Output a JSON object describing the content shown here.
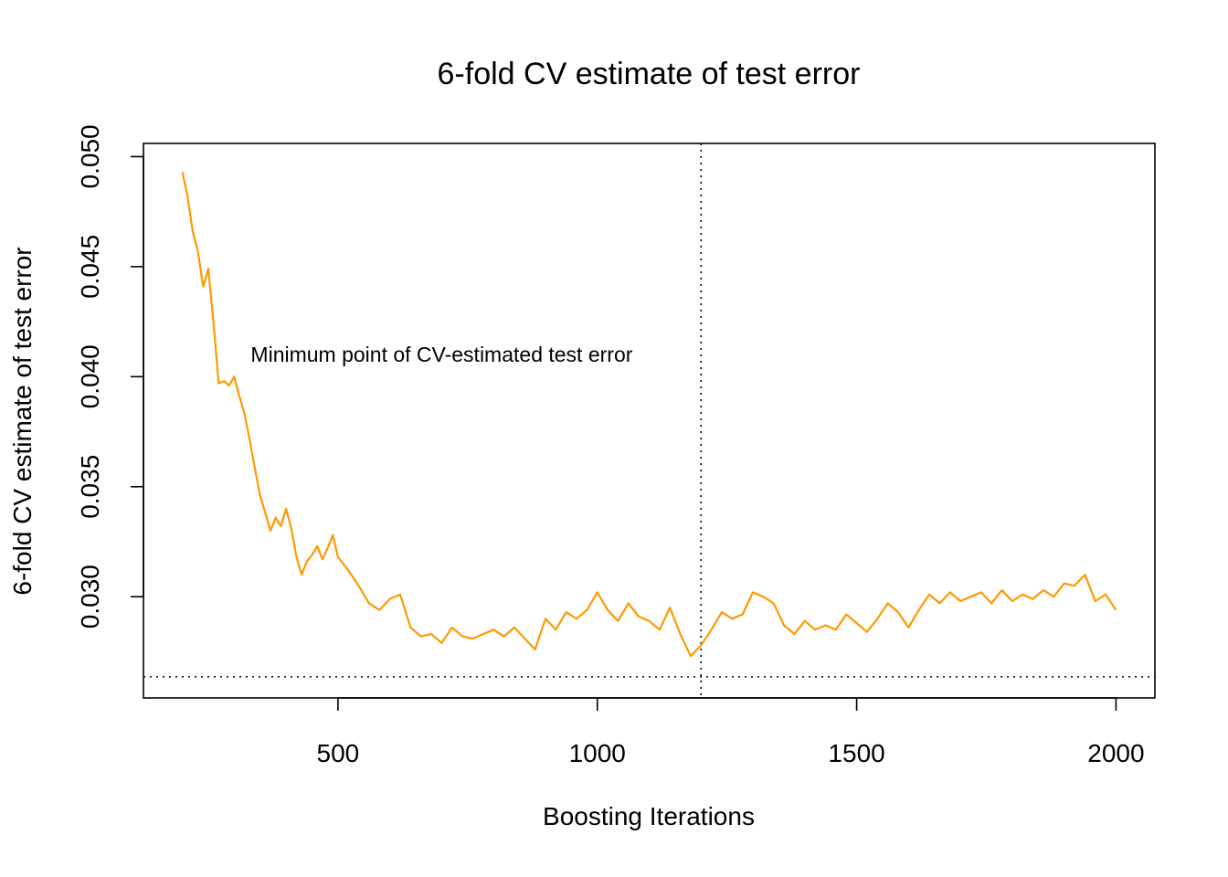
{
  "chart_data": {
    "type": "line",
    "title": "6-fold CV estimate of test error",
    "xlabel": "Boosting Iterations",
    "ylabel": "6-fold CV estimate of test error",
    "xlim": [
      125,
      2075
    ],
    "ylim": [
      0.0254,
      0.0506
    ],
    "x_ticks": [
      {
        "value": 500,
        "label": "500"
      },
      {
        "value": 1000,
        "label": "1000"
      },
      {
        "value": 1500,
        "label": "1500"
      },
      {
        "value": 2000,
        "label": "2000"
      }
    ],
    "y_ticks": [
      {
        "value": 0.03,
        "label": "0.030"
      },
      {
        "value": 0.035,
        "label": "0.035"
      },
      {
        "value": 0.04,
        "label": "0.040"
      },
      {
        "value": 0.045,
        "label": "0.045"
      },
      {
        "value": 0.05,
        "label": "0.050"
      }
    ],
    "grid": false,
    "legend": "none",
    "series": [
      {
        "color": "#FF9900",
        "x": [
          200,
          210,
          220,
          230,
          240,
          250,
          260,
          270,
          280,
          290,
          300,
          310,
          320,
          330,
          340,
          350,
          360,
          370,
          380,
          390,
          400,
          410,
          420,
          430,
          440,
          450,
          460,
          470,
          480,
          490,
          500,
          520,
          540,
          560,
          580,
          600,
          620,
          640,
          660,
          680,
          700,
          720,
          740,
          760,
          780,
          800,
          820,
          840,
          860,
          880,
          900,
          920,
          940,
          960,
          980,
          1000,
          1020,
          1040,
          1060,
          1080,
          1100,
          1120,
          1140,
          1160,
          1180,
          1200,
          1220,
          1240,
          1260,
          1280,
          1300,
          1320,
          1340,
          1360,
          1380,
          1400,
          1420,
          1440,
          1460,
          1480,
          1500,
          1520,
          1540,
          1560,
          1580,
          1600,
          1620,
          1640,
          1660,
          1680,
          1700,
          1720,
          1740,
          1760,
          1780,
          1800,
          1820,
          1840,
          1860,
          1880,
          1900,
          1920,
          1940,
          1960,
          1980,
          2000
        ],
        "y": [
          0.0493,
          0.0482,
          0.0466,
          0.0457,
          0.0441,
          0.0449,
          0.0425,
          0.0397,
          0.0398,
          0.0396,
          0.04,
          0.0391,
          0.0383,
          0.0371,
          0.0358,
          0.0346,
          0.0338,
          0.033,
          0.0336,
          0.0332,
          0.034,
          0.0331,
          0.0318,
          0.031,
          0.0316,
          0.0319,
          0.0323,
          0.0317,
          0.0322,
          0.0328,
          0.0318,
          0.0312,
          0.0305,
          0.0297,
          0.0294,
          0.0299,
          0.0301,
          0.0286,
          0.0282,
          0.0283,
          0.0279,
          0.0286,
          0.0282,
          0.0281,
          0.0283,
          0.0285,
          0.0282,
          0.0286,
          0.0281,
          0.0276,
          0.029,
          0.0285,
          0.0293,
          0.029,
          0.0294,
          0.0302,
          0.0294,
          0.0289,
          0.0297,
          0.0291,
          0.0289,
          0.0285,
          0.0295,
          0.0283,
          0.0273,
          0.0278,
          0.0285,
          0.0293,
          0.029,
          0.0292,
          0.0302,
          0.03,
          0.0297,
          0.0287,
          0.0283,
          0.0289,
          0.0285,
          0.0287,
          0.0285,
          0.0292,
          0.0288,
          0.0284,
          0.029,
          0.0297,
          0.0293,
          0.0286,
          0.0294,
          0.0301,
          0.0297,
          0.0302,
          0.0298,
          0.03,
          0.0302,
          0.0297,
          0.0303,
          0.0298,
          0.0301,
          0.0299,
          0.0303,
          0.03,
          0.0306,
          0.0305,
          0.031,
          0.0298,
          0.0301,
          0.0294
        ]
      }
    ],
    "reference_lines": [
      {
        "orientation": "vertical",
        "value": 1200,
        "style": "dotted"
      },
      {
        "orientation": "horizontal",
        "value": 0.02636,
        "style": "dotted"
      }
    ],
    "annotations": [
      {
        "text": "Minimum point of CV-estimated test error",
        "x": 700,
        "y": 0.041
      }
    ]
  }
}
